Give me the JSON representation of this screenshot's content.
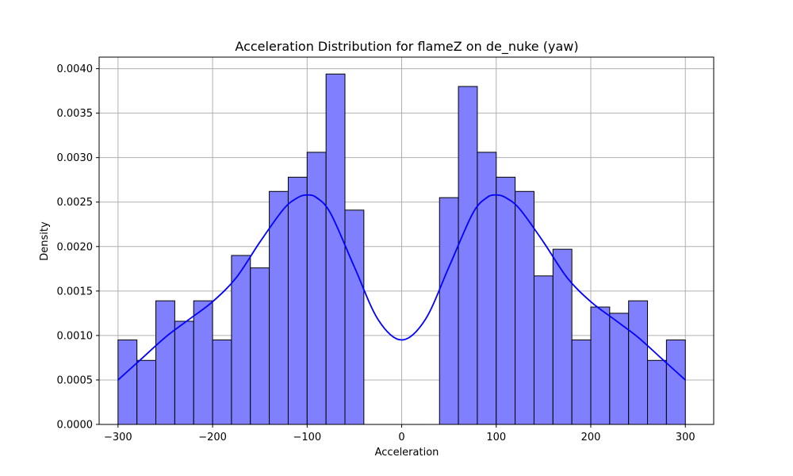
{
  "chart_data": {
    "type": "histogram",
    "title": "Acceleration Distribution for flameZ on de_nuke (yaw)",
    "xlabel": "Acceleration",
    "ylabel": "Density",
    "xlim": [
      -320,
      330
    ],
    "ylim": [
      0,
      0.00413
    ],
    "grid": true,
    "bin_width": 20,
    "x_ticks": [
      {
        "value": -300,
        "label": "−300"
      },
      {
        "value": -200,
        "label": "−200"
      },
      {
        "value": -100,
        "label": "−100"
      },
      {
        "value": 0,
        "label": "0"
      },
      {
        "value": 100,
        "label": "100"
      },
      {
        "value": 200,
        "label": "200"
      },
      {
        "value": 300,
        "label": "300"
      }
    ],
    "y_ticks": [
      {
        "value": 0.0,
        "label": "0.0000"
      },
      {
        "value": 0.0005,
        "label": "0.0005"
      },
      {
        "value": 0.001,
        "label": "0.0010"
      },
      {
        "value": 0.0015,
        "label": "0.0015"
      },
      {
        "value": 0.002,
        "label": "0.0020"
      },
      {
        "value": 0.0025,
        "label": "0.0025"
      },
      {
        "value": 0.003,
        "label": "0.0030"
      },
      {
        "value": 0.0035,
        "label": "0.0035"
      },
      {
        "value": 0.004,
        "label": "0.0040"
      }
    ],
    "bins": [
      {
        "x0": -300,
        "x1": -280,
        "density": 0.00095
      },
      {
        "x0": -280,
        "x1": -260,
        "density": 0.00072
      },
      {
        "x0": -260,
        "x1": -240,
        "density": 0.00139
      },
      {
        "x0": -240,
        "x1": -220,
        "density": 0.00116
      },
      {
        "x0": -220,
        "x1": -200,
        "density": 0.00139
      },
      {
        "x0": -200,
        "x1": -180,
        "density": 0.00095
      },
      {
        "x0": -180,
        "x1": -160,
        "density": 0.0019
      },
      {
        "x0": -160,
        "x1": -140,
        "density": 0.00176
      },
      {
        "x0": -140,
        "x1": -120,
        "density": 0.00262
      },
      {
        "x0": -120,
        "x1": -100,
        "density": 0.00278
      },
      {
        "x0": -100,
        "x1": -80,
        "density": 0.00306
      },
      {
        "x0": -80,
        "x1": -60,
        "density": 0.00394
      },
      {
        "x0": -60,
        "x1": -40,
        "density": 0.00241
      },
      {
        "x0": 40,
        "x1": 60,
        "density": 0.00255
      },
      {
        "x0": 60,
        "x1": 80,
        "density": 0.0038
      },
      {
        "x0": 80,
        "x1": 100,
        "density": 0.00306
      },
      {
        "x0": 100,
        "x1": 120,
        "density": 0.00278
      },
      {
        "x0": 120,
        "x1": 140,
        "density": 0.00262
      },
      {
        "x0": 140,
        "x1": 160,
        "density": 0.00167
      },
      {
        "x0": 160,
        "x1": 180,
        "density": 0.00197
      },
      {
        "x0": 180,
        "x1": 200,
        "density": 0.00095
      },
      {
        "x0": 200,
        "x1": 220,
        "density": 0.00132
      },
      {
        "x0": 220,
        "x1": 240,
        "density": 0.00125
      },
      {
        "x0": 240,
        "x1": 260,
        "density": 0.00139
      },
      {
        "x0": 260,
        "x1": 280,
        "density": 0.00072
      },
      {
        "x0": 280,
        "x1": 300,
        "density": 0.00095
      }
    ],
    "kde": {
      "x": [
        -300,
        -275,
        -250,
        -225,
        -200,
        -175,
        -150,
        -125,
        -110,
        -100,
        -90,
        -75,
        -50,
        -25,
        0,
        25,
        50,
        75,
        90,
        100,
        110,
        125,
        150,
        175,
        200,
        225,
        250,
        275,
        300
      ],
      "y": [
        0.0005,
        0.00074,
        0.00098,
        0.00118,
        0.00138,
        0.00165,
        0.00205,
        0.00242,
        0.00255,
        0.00258,
        0.00255,
        0.00237,
        0.00177,
        0.00118,
        0.00095,
        0.00118,
        0.00177,
        0.00237,
        0.00255,
        0.00258,
        0.00255,
        0.00242,
        0.00205,
        0.00165,
        0.00138,
        0.00118,
        0.00098,
        0.00074,
        0.0005
      ]
    },
    "colors": {
      "bar_fill": "#8080ff",
      "bar_edge": "#000000",
      "kde_line": "#0000ff",
      "grid": "#b0b0b0"
    }
  }
}
